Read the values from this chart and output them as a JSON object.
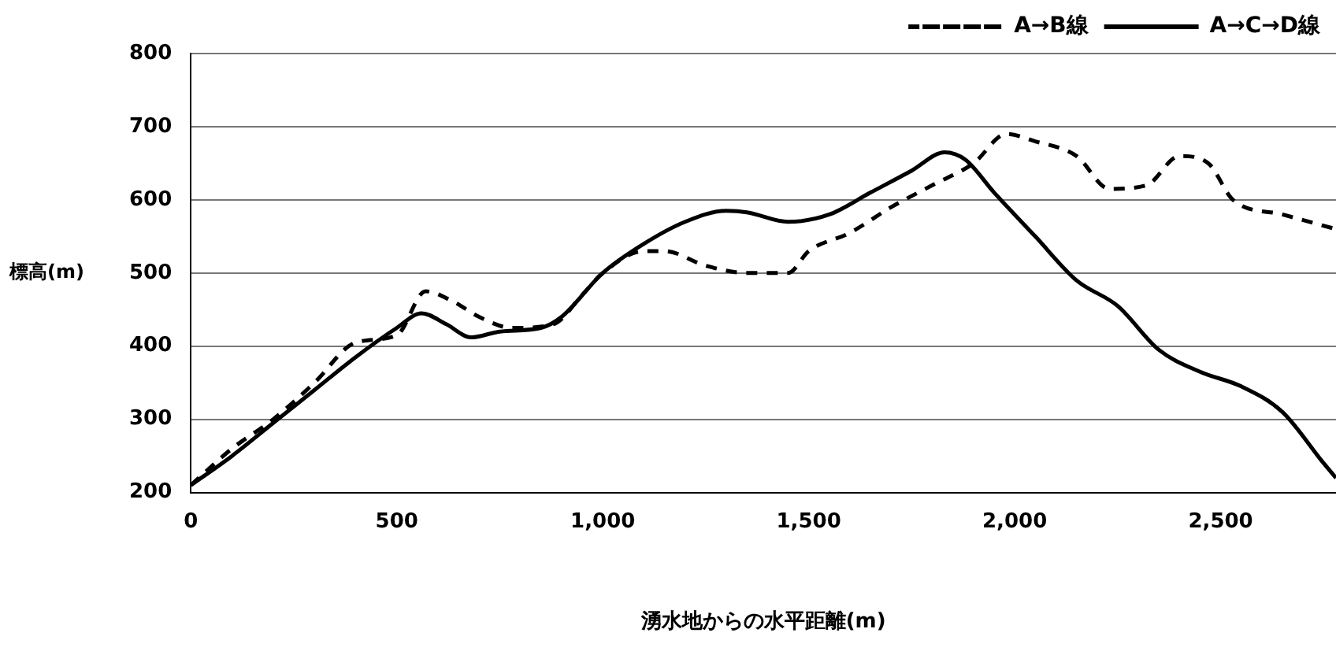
{
  "chart_data": {
    "type": "line",
    "xlabel": "湧水地からの水平距離(m)",
    "ylabel": "標高(m)",
    "xlim": [
      0,
      2780
    ],
    "xticks": [
      0,
      {
        "value": 500,
        "label": "500"
      },
      {
        "value": 1000,
        "label": "1,000"
      },
      {
        "value": 1500,
        "label": "1,500"
      },
      {
        "value": 2000,
        "label": "2,000"
      },
      {
        "value": 2500,
        "label": "2,500"
      }
    ],
    "ylim": [
      200,
      800
    ],
    "yticks": [
      200,
      300,
      400,
      500,
      600,
      700,
      800
    ],
    "grid": "y",
    "legend": "top right",
    "marker": "none",
    "series": [
      {
        "name": "A→B線",
        "color": "#000000",
        "line_style": "dashed",
        "x": [
          0,
          100,
          200,
          300,
          400,
          500,
          570,
          640,
          700,
          780,
          880,
          950,
          1000,
          1100,
          1150,
          1250,
          1350,
          1450,
          1500,
          1600,
          1700,
          1800,
          1900,
          1980,
          2050,
          2150,
          2230,
          2320,
          2400,
          2470,
          2530,
          2650,
          2780
        ],
        "values": [
          210,
          260,
          300,
          350,
          405,
          415,
          475,
          460,
          440,
          425,
          430,
          470,
          500,
          530,
          530,
          510,
          500,
          500,
          530,
          555,
          590,
          620,
          650,
          690,
          680,
          660,
          615,
          620,
          660,
          650,
          600,
          580,
          560
        ]
      },
      {
        "name": "A→C→D線",
        "color": "#000000",
        "line_style": "solid",
        "x": [
          0,
          100,
          200,
          300,
          400,
          500,
          560,
          620,
          680,
          750,
          850,
          900,
          1000,
          1100,
          1200,
          1300,
          1350,
          1450,
          1550,
          1650,
          1750,
          1830,
          1880,
          1950,
          2050,
          2150,
          2250,
          2350,
          2450,
          2550,
          2650,
          2750,
          2780
        ],
        "values": [
          210,
          250,
          295,
          340,
          385,
          425,
          445,
          430,
          412,
          420,
          425,
          440,
          500,
          540,
          570,
          585,
          583,
          570,
          580,
          610,
          640,
          665,
          655,
          610,
          550,
          490,
          455,
          395,
          365,
          345,
          310,
          240,
          220
        ]
      }
    ]
  }
}
